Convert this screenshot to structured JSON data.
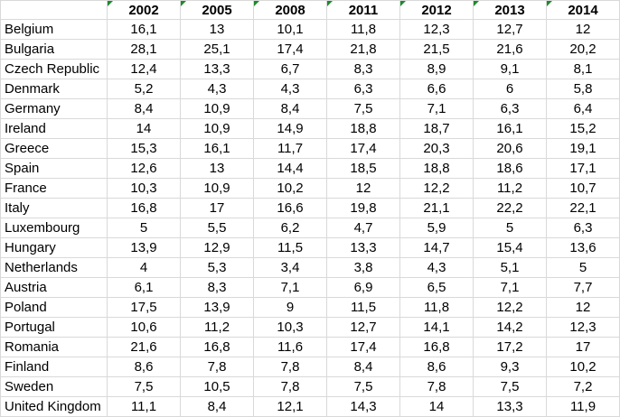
{
  "table": {
    "columns": [
      "2002",
      "2005",
      "2008",
      "2011",
      "2012",
      "2013",
      "2014"
    ],
    "rows": [
      {
        "label": "Belgium",
        "cells": [
          "16,1",
          "13",
          "10,1",
          "11,8",
          "12,3",
          "12,7",
          "12"
        ]
      },
      {
        "label": "Bulgaria",
        "cells": [
          "28,1",
          "25,1",
          "17,4",
          "21,8",
          "21,5",
          "21,6",
          "20,2"
        ]
      },
      {
        "label": "Czech Republic",
        "cells": [
          "12,4",
          "13,3",
          "6,7",
          "8,3",
          "8,9",
          "9,1",
          "8,1"
        ]
      },
      {
        "label": "Denmark",
        "cells": [
          "5,2",
          "4,3",
          "4,3",
          "6,3",
          "6,6",
          "6",
          "5,8"
        ]
      },
      {
        "label": "Germany",
        "cells": [
          "8,4",
          "10,9",
          "8,4",
          "7,5",
          "7,1",
          "6,3",
          "6,4"
        ]
      },
      {
        "label": "Ireland",
        "cells": [
          "14",
          "10,9",
          "14,9",
          "18,8",
          "18,7",
          "16,1",
          "15,2"
        ]
      },
      {
        "label": "Greece",
        "cells": [
          "15,3",
          "16,1",
          "11,7",
          "17,4",
          "20,3",
          "20,6",
          "19,1"
        ]
      },
      {
        "label": "Spain",
        "cells": [
          "12,6",
          "13",
          "14,4",
          "18,5",
          "18,8",
          "18,6",
          "17,1"
        ]
      },
      {
        "label": "France",
        "cells": [
          "10,3",
          "10,9",
          "10,2",
          "12",
          "12,2",
          "11,2",
          "10,7"
        ]
      },
      {
        "label": "Italy",
        "cells": [
          "16,8",
          "17",
          "16,6",
          "19,8",
          "21,1",
          "22,2",
          "22,1"
        ]
      },
      {
        "label": "Luxembourg",
        "cells": [
          "5",
          "5,5",
          "6,2",
          "4,7",
          "5,9",
          "5",
          "6,3"
        ]
      },
      {
        "label": "Hungary",
        "cells": [
          "13,9",
          "12,9",
          "11,5",
          "13,3",
          "14,7",
          "15,4",
          "13,6"
        ]
      },
      {
        "label": "Netherlands",
        "cells": [
          "4",
          "5,3",
          "3,4",
          "3,8",
          "4,3",
          "5,1",
          "5"
        ]
      },
      {
        "label": "Austria",
        "cells": [
          "6,1",
          "8,3",
          "7,1",
          "6,9",
          "6,5",
          "7,1",
          "7,7"
        ]
      },
      {
        "label": "Poland",
        "cells": [
          "17,5",
          "13,9",
          "9",
          "11,5",
          "11,8",
          "12,2",
          "12"
        ]
      },
      {
        "label": "Portugal",
        "cells": [
          "10,6",
          "11,2",
          "10,3",
          "12,7",
          "14,1",
          "14,2",
          "12,3"
        ]
      },
      {
        "label": "Romania",
        "cells": [
          "21,6",
          "16,8",
          "11,6",
          "17,4",
          "16,8",
          "17,2",
          "17"
        ]
      },
      {
        "label": "Finland",
        "cells": [
          "8,6",
          "7,8",
          "7,8",
          "8,4",
          "8,6",
          "9,3",
          "10,2"
        ]
      },
      {
        "label": "Sweden",
        "cells": [
          "7,5",
          "10,5",
          "7,8",
          "7,5",
          "7,8",
          "7,5",
          "7,2"
        ]
      },
      {
        "label": "United Kingdom",
        "cells": [
          "11,1",
          "8,4",
          "12,1",
          "14,3",
          "14",
          "13,3",
          "11,9"
        ]
      }
    ]
  }
}
